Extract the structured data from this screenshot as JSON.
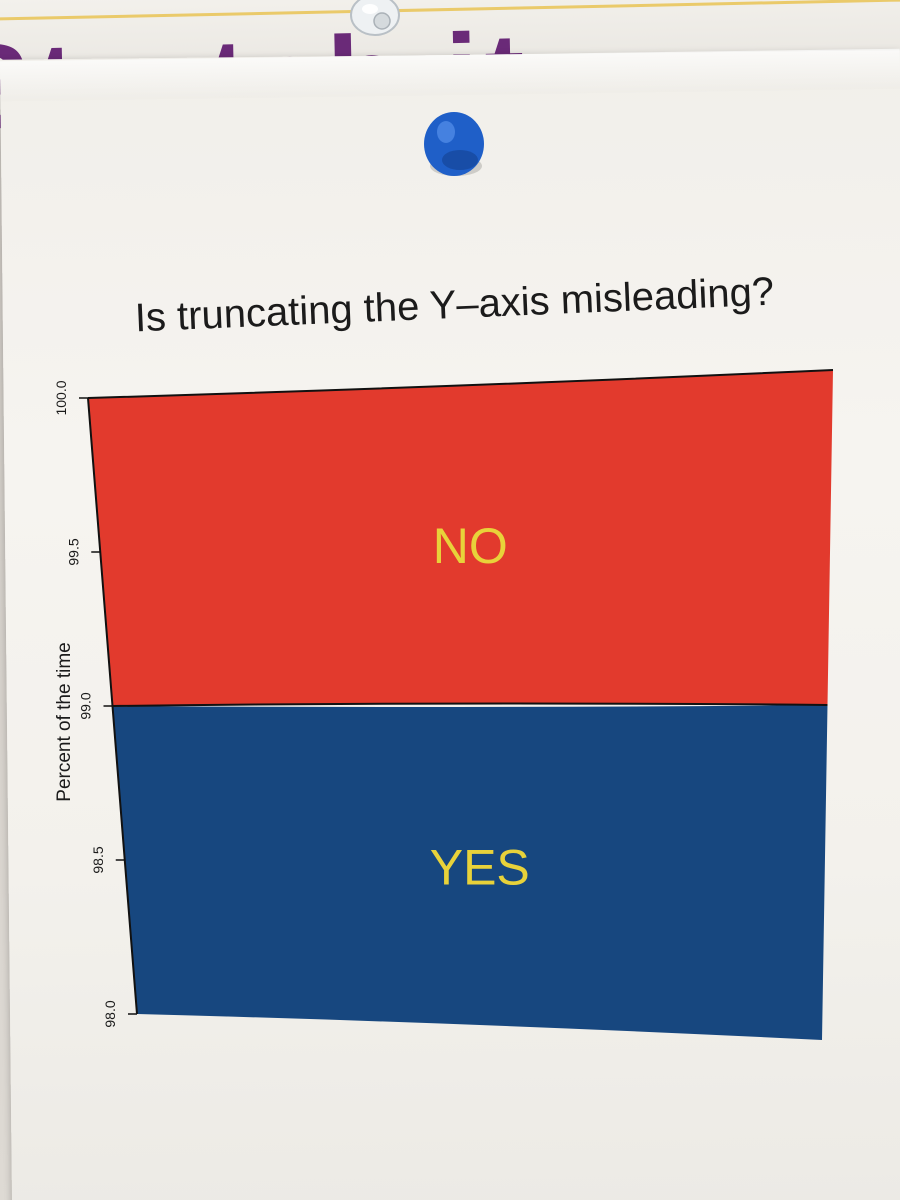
{
  "background": {
    "poster_text": "Stretch it",
    "accent_color": "#6a2a78"
  },
  "pins": [
    {
      "name": "clear-push-pin",
      "color": "#e8ecef"
    },
    {
      "name": "blue-push-pin",
      "color": "#1f5fc8"
    }
  ],
  "chart_data": {
    "type": "area",
    "title": "Is truncating the Y–axis misleading?",
    "ylabel": "Percent of the time",
    "xlabel": "",
    "ylim": [
      98.0,
      100.0
    ],
    "yticks": [
      98.0,
      98.5,
      99.0,
      99.5,
      100.0
    ],
    "ytick_labels": [
      "98.0",
      "98.5",
      "99.0",
      "99.5",
      "100.0"
    ],
    "series": [
      {
        "name": "YES",
        "from": 98.0,
        "to": 99.0,
        "color": "#17477f",
        "label_color": "#e8d23a"
      },
      {
        "name": "NO",
        "from": 99.0,
        "to": 100.0,
        "color": "#e23a2d",
        "label_color": "#e8d23a"
      }
    ],
    "grid": false,
    "legend": "none"
  }
}
